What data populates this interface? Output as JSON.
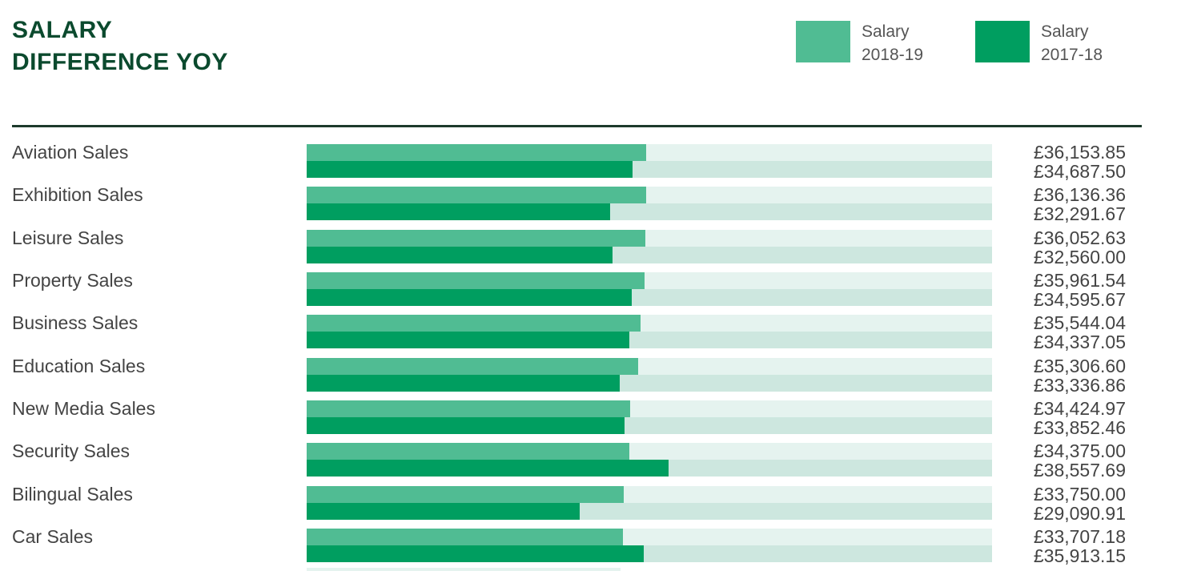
{
  "title_lines": [
    "SALARY",
    "DIFFERENCE YOY"
  ],
  "colors": {
    "series_2018_19": "#50bc93",
    "series_2017_18": "#009e60",
    "track_light": "#e5f3ef",
    "track_dark": "#cde7df",
    "title": "#0b4a2e"
  },
  "legend": [
    {
      "lines": [
        "Salary",
        "2018-19"
      ],
      "color": "#50bc93"
    },
    {
      "lines": [
        "Salary",
        "2017-18"
      ],
      "color": "#009e60"
    }
  ],
  "chart_data": {
    "type": "bar",
    "orientation": "horizontal",
    "xlim": [
      0,
      73000
    ],
    "categories": [
      "Aviation Sales",
      "Exhibition Sales",
      "Leisure Sales",
      "Property Sales",
      "Business Sales",
      "Education Sales",
      "New Media Sales",
      "Security Sales",
      "Bilingual Sales",
      "Car Sales"
    ],
    "series": [
      {
        "name": "Salary 2018-19",
        "values": [
          36153.85,
          36136.36,
          36052.63,
          35961.54,
          35544.04,
          35306.6,
          34424.97,
          34375.0,
          33750.0,
          33707.18
        ],
        "labels": [
          "£36,153.85",
          "£36,136.36",
          "£36,052.63",
          "£35,961.54",
          "£35,544.04",
          "£35,306.60",
          "£34,424.97",
          "£34,375.00",
          "£33,750.00",
          "£33,707.18"
        ]
      },
      {
        "name": "Salary 2017-18",
        "values": [
          34687.5,
          32291.67,
          32560.0,
          34595.67,
          34337.05,
          33336.86,
          33852.46,
          38557.69,
          29090.91,
          35913.15
        ],
        "labels": [
          "£34,687.50",
          "£32,291.67",
          "£32,560.00",
          "£34,595.67",
          "£34,337.05",
          "£33,336.86",
          "£33,852.46",
          "£38,557.69",
          "£29,090.91",
          "£35,913.15"
        ]
      }
    ],
    "grid": false,
    "legend_position": "top-right"
  }
}
